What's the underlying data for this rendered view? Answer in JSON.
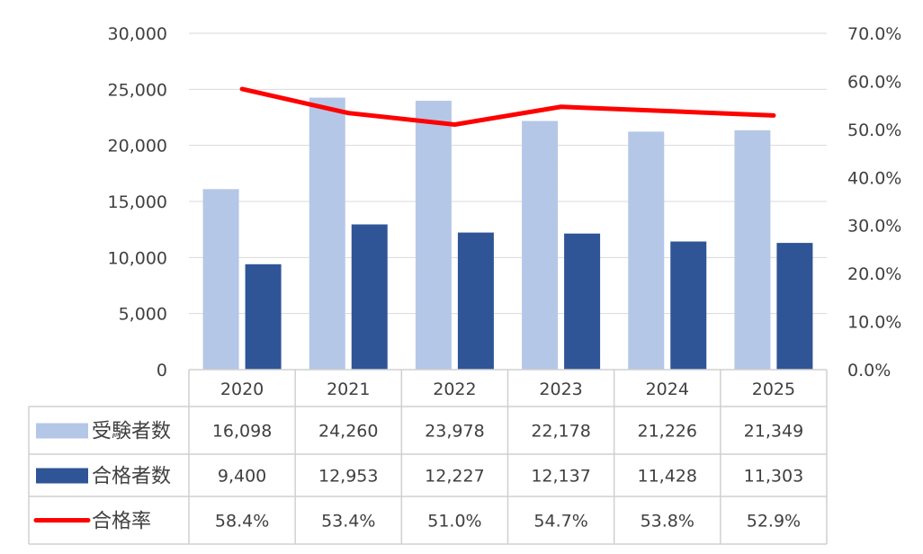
{
  "chart_data": {
    "type": "bar",
    "categories": [
      "2020",
      "2021",
      "2022",
      "2023",
      "2024",
      "2025"
    ],
    "series": [
      {
        "name": "受験者数",
        "kind": "bar",
        "axis": "left",
        "color": "#b4c7e7",
        "values": [
          16098,
          24260,
          23978,
          22178,
          21226,
          21349
        ],
        "labels": [
          "16,098",
          "24,260",
          "23,978",
          "22,178",
          "21,226",
          "21,349"
        ]
      },
      {
        "name": "合格者数",
        "kind": "bar",
        "axis": "left",
        "color": "#2f5597",
        "values": [
          9400,
          12953,
          12227,
          12137,
          11428,
          11303
        ],
        "labels": [
          "9,400",
          "12,953",
          "12,227",
          "12,137",
          "11,428",
          "11,303"
        ]
      },
      {
        "name": "合格率",
        "kind": "line",
        "axis": "right",
        "color": "#ff0000",
        "values": [
          58.4,
          53.4,
          51.0,
          54.7,
          53.8,
          52.9
        ],
        "labels": [
          "58.4%",
          "53.4%",
          "51.0%",
          "54.7%",
          "53.8%",
          "52.9%"
        ]
      }
    ],
    "y_left": {
      "ylim": [
        0,
        30000
      ],
      "ticks": [
        "0",
        "5,000",
        "10,000",
        "15,000",
        "20,000",
        "25,000",
        "30,000"
      ]
    },
    "y_right": {
      "ylim": [
        0,
        70
      ],
      "ticks": [
        "0.0%",
        "10.0%",
        "20.0%",
        "30.0%",
        "40.0%",
        "50.0%",
        "60.0%",
        "70.0%"
      ]
    },
    "grid": true,
    "legend": "data-table"
  }
}
